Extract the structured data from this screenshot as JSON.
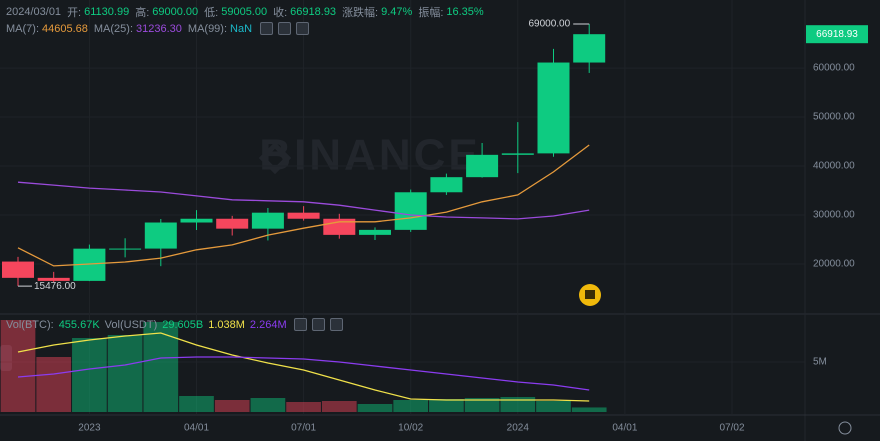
{
  "header": {
    "date": "2024/03/01",
    "items": [
      {
        "label": "开:",
        "value": "61130.99"
      },
      {
        "label": "高:",
        "value": "69000.00"
      },
      {
        "label": "低:",
        "value": "59005.00"
      },
      {
        "label": "收:",
        "value": "66918.93"
      },
      {
        "label": "涨跌幅:",
        "value": "9.47%"
      },
      {
        "label": "振幅:",
        "value": "16.35%"
      }
    ]
  },
  "watermark": "BINANCE",
  "chart_data": {
    "type": "candlestick",
    "categories": [
      null,
      null,
      "2023",
      null,
      null,
      "04/01",
      null,
      null,
      "07/01",
      null,
      null,
      "10/02",
      null,
      null,
      "2024",
      null,
      null,
      "04/01",
      null,
      null,
      "07/02"
    ],
    "open": [
      20490,
      17164,
      16542,
      23125,
      23141,
      28465,
      29233,
      27210,
      30472,
      29232,
      25941,
      26962,
      34639,
      37723,
      42283,
      42580,
      61130.99,
      null,
      null,
      null,
      null
    ],
    "high": [
      21446,
      18387,
      23960,
      25250,
      29184,
      31000,
      29820,
      31431,
      31804,
      30244,
      27483,
      35198,
      38450,
      44700,
      48969,
      63913,
      69000,
      null,
      null,
      null,
      null
    ],
    "low": [
      15476,
      16256,
      16499,
      21351,
      19549,
      26942,
      25811,
      24800,
      28861,
      25166,
      24901,
      26538,
      34097,
      37629,
      38555,
      41884,
      59005,
      null,
      null,
      null,
      null
    ],
    "close": [
      17164,
      16542,
      23125,
      23141,
      28465,
      29233,
      27210,
      30472,
      29232,
      25941,
      26962,
      34639,
      37723,
      42283,
      42580,
      61131,
      66918.93,
      null,
      null,
      null,
      null
    ],
    "up_color": "#0ecb81",
    "down_color": "#f6465d",
    "series": [
      {
        "name": "MA(7):",
        "legend_value": "44605.68",
        "color": "#e59a3c",
        "values": [
          23300,
          19600,
          20000,
          20400,
          21200,
          22900,
          23900,
          25900,
          27300,
          28600,
          28600,
          29400,
          30600,
          32700,
          34100,
          38800,
          44300,
          null,
          null,
          null,
          null
        ]
      },
      {
        "name": "MA(25):",
        "legend_value": "31236.30",
        "color": "#9b4bdc",
        "values": [
          36700,
          36100,
          35500,
          35100,
          34700,
          33900,
          33100,
          32900,
          32700,
          32000,
          31000,
          30000,
          29600,
          29400,
          29200,
          29800,
          31000,
          null,
          null,
          null,
          null
        ]
      },
      {
        "name": "MA(99):",
        "legend_value": "NaN",
        "color": "#1bb8c8",
        "values": [
          null,
          null,
          null,
          null,
          null,
          null,
          null,
          null,
          null,
          null,
          null,
          null,
          null,
          null,
          null,
          null,
          null,
          null,
          null,
          null,
          null
        ]
      }
    ],
    "ylim": [
      10600,
      73900
    ],
    "yticks": [
      {
        "value": 20000,
        "label": "20000.00"
      },
      {
        "value": 30000,
        "label": "30000.00"
      },
      {
        "value": 40000,
        "label": "40000.00"
      },
      {
        "value": 50000,
        "label": "50000.00"
      },
      {
        "value": 60000,
        "label": "60000.00"
      }
    ],
    "grid": true,
    "high_label": "69000.00",
    "low_label": "15476.00",
    "last_price_label": "66918.93",
    "volume": {
      "values": [
        9200000,
        5500000,
        7400000,
        7700000,
        9000000,
        1600000,
        1200000,
        1400000,
        1000000,
        1100000,
        800000,
        1200000,
        1300000,
        1400000,
        1500000,
        1100000,
        455670,
        null,
        null,
        null,
        null
      ],
      "ylim": [
        0,
        9400000
      ],
      "yticks": [
        {
          "value": 5000000,
          "label": "5M"
        }
      ],
      "legend": [
        {
          "text": "Vol(BTC):",
          "color": "#848e9c"
        },
        {
          "text": "455.67K",
          "color": "#0ecb81"
        },
        {
          "text": "Vol(USDT)",
          "color": "#848e9c"
        },
        {
          "text": "29.605B",
          "color": "#0ecb81"
        },
        {
          "text": "1.038M",
          "color": "#f0e14a"
        },
        {
          "text": "2.264M",
          "color": "#8b3cf0"
        }
      ],
      "series": [
        {
          "color": "#f0e14a",
          "values": [
            6000000,
            6700000,
            7200000,
            7600000,
            7900000,
            6700000,
            5700000,
            4900000,
            4200000,
            3200000,
            2200000,
            1300000,
            1200000,
            1200000,
            1200000,
            1200000,
            1100000,
            null,
            null,
            null,
            null
          ]
        },
        {
          "color": "#8b3cf0",
          "values": [
            3500000,
            3800000,
            4300000,
            4700000,
            5400000,
            5500000,
            5500000,
            5400000,
            5300000,
            5000000,
            4600000,
            4200000,
            3800000,
            3400000,
            3000000,
            2700000,
            2200000,
            null,
            null,
            null,
            null
          ]
        }
      ]
    }
  }
}
